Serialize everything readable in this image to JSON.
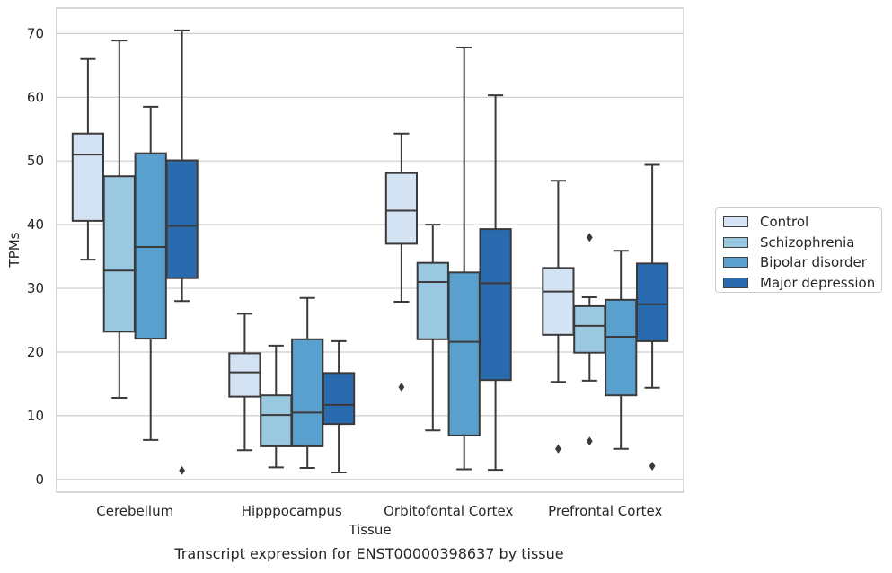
{
  "chart_data": {
    "type": "box",
    "title": "Transcript expression for ENST00000398637 by tissue",
    "xlabel": "Tissue",
    "ylabel": "TPMs",
    "ylim": [
      -2,
      74
    ],
    "yticks": [
      0,
      10,
      20,
      30,
      40,
      50,
      60,
      70
    ],
    "grid": "horizontal",
    "legend_position": "right",
    "categories": [
      "Cerebellum",
      "Hipppocampus",
      "Orbitofontal Cortex",
      "Prefrontal Cortex"
    ],
    "series": [
      {
        "name": "Control",
        "color": "#d3e3f3",
        "boxes": [
          {
            "whislo": 34.5,
            "q1": 40.6,
            "med": 51.0,
            "q3": 54.3,
            "whishi": 66.0,
            "fliers": []
          },
          {
            "whislo": 4.6,
            "q1": 13.0,
            "med": 16.8,
            "q3": 19.8,
            "whishi": 26.0,
            "fliers": []
          },
          {
            "whislo": 27.9,
            "q1": 37.0,
            "med": 42.2,
            "q3": 48.1,
            "whishi": 54.3,
            "fliers": [
              14.5
            ]
          },
          {
            "whislo": 15.3,
            "q1": 22.7,
            "med": 29.5,
            "q3": 33.2,
            "whishi": 46.9,
            "fliers": [
              4.8
            ]
          }
        ]
      },
      {
        "name": "Schizophrenia",
        "color": "#9ac8e0",
        "boxes": [
          {
            "whislo": 12.8,
            "q1": 23.2,
            "med": 32.8,
            "q3": 47.6,
            "whishi": 68.9,
            "fliers": []
          },
          {
            "whislo": 1.9,
            "q1": 5.2,
            "med": 10.1,
            "q3": 13.2,
            "whishi": 21.0,
            "fliers": []
          },
          {
            "whislo": 7.7,
            "q1": 22.0,
            "med": 31.0,
            "q3": 34.0,
            "whishi": 40.0,
            "fliers": []
          },
          {
            "whislo": 15.5,
            "q1": 19.9,
            "med": 24.1,
            "q3": 27.2,
            "whishi": 28.6,
            "fliers": [
              38.0,
              6.0
            ]
          }
        ]
      },
      {
        "name": "Bipolar disorder",
        "color": "#5aa0ce",
        "boxes": [
          {
            "whislo": 6.2,
            "q1": 22.1,
            "med": 36.5,
            "q3": 51.2,
            "whishi": 58.5,
            "fliers": []
          },
          {
            "whislo": 1.8,
            "q1": 5.2,
            "med": 10.5,
            "q3": 22.0,
            "whishi": 28.5,
            "fliers": []
          },
          {
            "whislo": 1.6,
            "q1": 6.9,
            "med": 21.6,
            "q3": 32.5,
            "whishi": 67.8,
            "fliers": []
          },
          {
            "whislo": 4.8,
            "q1": 13.2,
            "med": 22.4,
            "q3": 28.2,
            "whishi": 35.9,
            "fliers": []
          }
        ]
      },
      {
        "name": "Major depression",
        "color": "#2a6bb0",
        "boxes": [
          {
            "whislo": 28.0,
            "q1": 31.6,
            "med": 39.8,
            "q3": 50.1,
            "whishi": 70.5,
            "fliers": [
              1.4
            ]
          },
          {
            "whislo": 1.1,
            "q1": 8.7,
            "med": 11.7,
            "q3": 16.7,
            "whishi": 21.7,
            "fliers": []
          },
          {
            "whislo": 1.5,
            "q1": 15.6,
            "med": 30.8,
            "q3": 39.3,
            "whishi": 60.3,
            "fliers": []
          },
          {
            "whislo": 14.4,
            "q1": 21.7,
            "med": 27.5,
            "q3": 33.9,
            "whishi": 49.4,
            "fliers": [
              2.1
            ]
          }
        ]
      }
    ]
  }
}
